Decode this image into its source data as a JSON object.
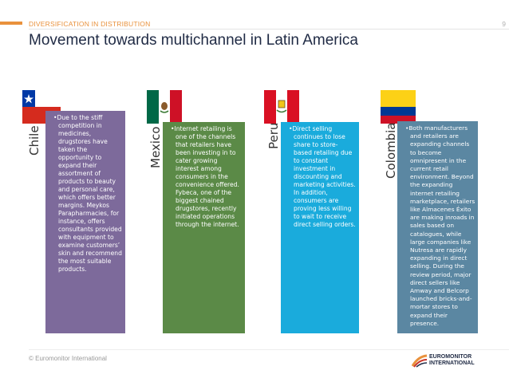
{
  "header": {
    "section_label": "DIVERSIFICATION IN DISTRIBUTION",
    "page_number": "9",
    "title": "Movement towards multichannel in Latin America"
  },
  "colors": {
    "accent": "#e9913c",
    "chile": "#7d6a9b",
    "mexico": "#5b8a47",
    "peru": "#1aabdc",
    "colombia": "#5b87a2"
  },
  "panels": [
    {
      "country": "Chile",
      "flag_icon": "chile-flag-icon",
      "text": "•Due to the stiff competition in medicines, drugstores have taken the opportunity to expand their assortment of products to beauty and personal care, which offers better margins. Meykos Parapharmacies, for instance, offers consultants provided with equipment to examine customers’ skin and recommend the most suitable products."
    },
    {
      "country": "Mexico",
      "flag_icon": "mexico-flag-icon",
      "text": "•Internet retailing is one of the channels that retailers have been investing in to cater growing interest among consumers in the convenience offered. Fybeca, one of the biggest chained drugstores, recently initiated operations through the internet."
    },
    {
      "country": "Peru",
      "flag_icon": "peru-flag-icon",
      "text": "•Direct selling continues to lose share to store-based retailing due to constant investment in discounting and marketing activities. In addition, consumers are proving less willing to wait to receive direct selling orders."
    },
    {
      "country": "Colombia",
      "flag_icon": "colombia-flag-icon",
      "text": "•Both manufacturers and retailers are expanding channels to become omnipresent in the current retail environment. Beyond the expanding internet retailing marketplace, retailers like Almacenes Éxito are making inroads in sales based on catalogues, while large companies like Nutresa are rapidly expanding in direct selling. During the review period, major direct sellers like Amway and Belcorp launched bricks-and-mortar stores to expand their presence."
    }
  ],
  "footer": {
    "copyright": "© Euromonitor International",
    "logo_line1": "EUROMONITOR",
    "logo_line2": "INTERNATIONAL"
  }
}
